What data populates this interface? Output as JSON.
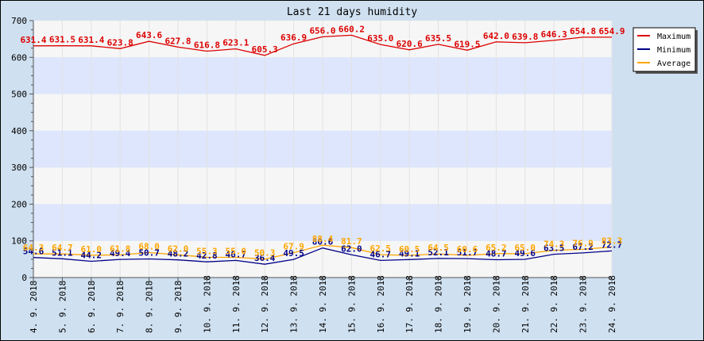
{
  "chart_data": {
    "type": "line",
    "title": "Last 21 days humidity",
    "xlabel": "",
    "ylabel": "",
    "ylim": [
      0,
      700
    ],
    "yticks": [
      0,
      100,
      200,
      300,
      400,
      500,
      600,
      700
    ],
    "categories": [
      "4. 9. 2018",
      "5. 9. 2018",
      "6. 9. 2018",
      "7. 9. 2018",
      "8. 9. 2018",
      "9. 9. 2018",
      "10. 9. 2018",
      "11. 9. 2018",
      "12. 9. 2018",
      "13. 9. 2018",
      "14. 9. 2018",
      "15. 9. 2018",
      "16. 9. 2018",
      "17. 9. 2018",
      "18. 9. 2018",
      "19. 9. 2018",
      "20. 9. 2018",
      "21. 9. 2018",
      "22. 9. 2018",
      "23. 9. 2018",
      "24. 9. 2018"
    ],
    "series": [
      {
        "name": "Maximum",
        "color": "#dd0000",
        "values": [
          631.4,
          631.5,
          631.4,
          623.8,
          643.6,
          627.8,
          616.8,
          623.1,
          605.3,
          636.9,
          656.0,
          660.2,
          635.0,
          620.6,
          635.5,
          619.5,
          642.0,
          639.8,
          646.3,
          654.8,
          654.9
        ]
      },
      {
        "name": "Minimum",
        "color": "#000088",
        "values": [
          54.6,
          51.1,
          44.2,
          49.4,
          50.7,
          48.2,
          42.8,
          46.7,
          36.4,
          49.5,
          80.6,
          62.0,
          46.7,
          49.1,
          52.1,
          51.7,
          48.7,
          49.6,
          63.5,
          67.2,
          72.7
        ]
      },
      {
        "name": "Average",
        "color": "#ffa500",
        "values": [
          64.3,
          64.7,
          61.0,
          61.8,
          68.0,
          62.0,
          55.3,
          55.0,
          50.3,
          67.9,
          88.4,
          81.7,
          62.5,
          60.5,
          64.5,
          60.6,
          65.2,
          65.0,
          74.3,
          76.9,
          83.3
        ]
      }
    ],
    "grid": true,
    "legend": "top-right"
  }
}
